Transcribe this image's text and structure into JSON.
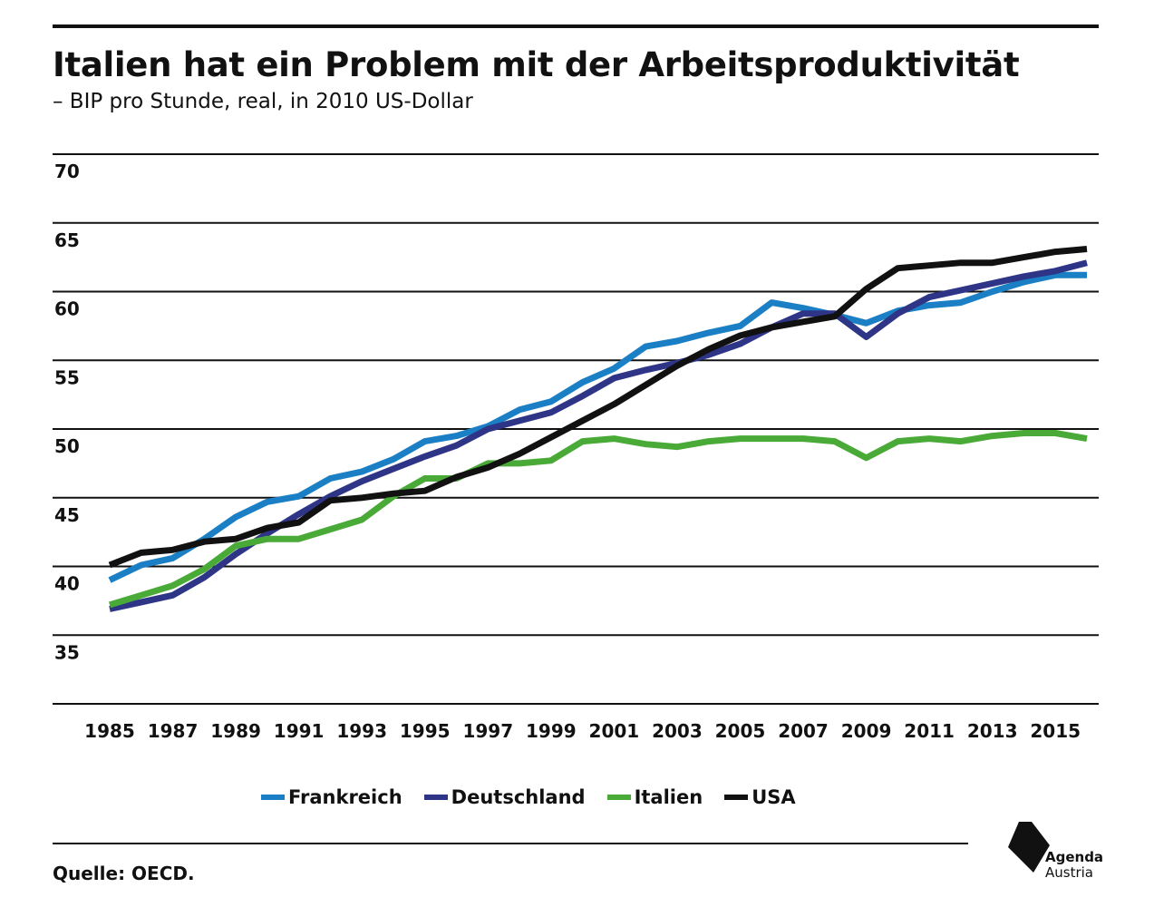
{
  "header": {
    "title": "Italien hat ein Problem mit der Arbeitsproduktivität",
    "subtitle": "– BIP pro Stunde, real, in 2010 US-Dollar"
  },
  "footer": {
    "source": "Quelle: OECD.",
    "logo_line1": "Agenda",
    "logo_line2": "Austria"
  },
  "chart_data": {
    "type": "line",
    "title": "Italien hat ein Problem mit der Arbeitsproduktivität",
    "subtitle": "– BIP pro Stunde, real, in 2010 US-Dollar",
    "xlabel": "",
    "ylabel": "",
    "ylim": [
      30,
      70
    ],
    "yticks": [
      35,
      40,
      45,
      50,
      55,
      60,
      65,
      70
    ],
    "xlim": [
      1984,
      2017
    ],
    "xticks": [
      "1985",
      "1987",
      "1989",
      "1991",
      "1993",
      "1995",
      "1997",
      "1999",
      "2001",
      "2003",
      "2005",
      "2007",
      "2009",
      "2011",
      "2013",
      "2015"
    ],
    "grid": true,
    "legend_position": "bottom",
    "x": [
      1985,
      1986,
      1987,
      1988,
      1989,
      1990,
      1991,
      1992,
      1993,
      1994,
      1995,
      1996,
      1997,
      1998,
      1999,
      2000,
      2001,
      2002,
      2003,
      2004,
      2005,
      2006,
      2007,
      2008,
      2009,
      2010,
      2011,
      2012,
      2013,
      2014,
      2015,
      2016
    ],
    "series": [
      {
        "name": "Frankreich",
        "color": "#1a7fc4",
        "values": [
          39.0,
          40.1,
          40.6,
          42.0,
          43.6,
          44.7,
          45.1,
          46.4,
          46.9,
          47.8,
          49.1,
          49.5,
          50.2,
          51.4,
          52.0,
          53.4,
          54.4,
          56.0,
          56.4,
          57.0,
          57.5,
          59.2,
          58.8,
          58.3,
          57.7,
          58.6,
          59.0,
          59.2,
          60.0,
          60.7,
          61.2,
          61.2
        ]
      },
      {
        "name": "Deutschland",
        "color": "#2e3486",
        "values": [
          36.9,
          37.4,
          37.9,
          39.2,
          40.9,
          42.4,
          43.8,
          45.1,
          46.2,
          47.1,
          48.0,
          48.8,
          50.0,
          50.6,
          51.2,
          52.4,
          53.7,
          54.3,
          54.8,
          55.4,
          56.2,
          57.4,
          58.4,
          58.4,
          56.7,
          58.4,
          59.6,
          60.1,
          60.6,
          61.1,
          61.5,
          62.1
        ]
      },
      {
        "name": "Italien",
        "color": "#4aaa38",
        "values": [
          37.2,
          37.9,
          38.6,
          39.8,
          41.5,
          42.0,
          42.0,
          42.7,
          43.4,
          45.1,
          46.4,
          46.4,
          47.5,
          47.5,
          47.7,
          49.1,
          49.3,
          48.9,
          48.7,
          49.1,
          49.3,
          49.3,
          49.3,
          49.1,
          47.9,
          49.1,
          49.3,
          49.1,
          49.5,
          49.7,
          49.7,
          49.3
        ]
      },
      {
        "name": "USA",
        "color": "#111111",
        "values": [
          40.1,
          41.0,
          41.2,
          41.8,
          42.0,
          42.8,
          43.2,
          44.8,
          45.0,
          45.3,
          45.5,
          46.5,
          47.2,
          48.2,
          49.4,
          50.6,
          51.8,
          53.2,
          54.6,
          55.8,
          56.8,
          57.4,
          57.8,
          58.2,
          60.2,
          61.7,
          61.9,
          62.1,
          62.1,
          62.5,
          62.9,
          63.1
        ]
      }
    ]
  }
}
